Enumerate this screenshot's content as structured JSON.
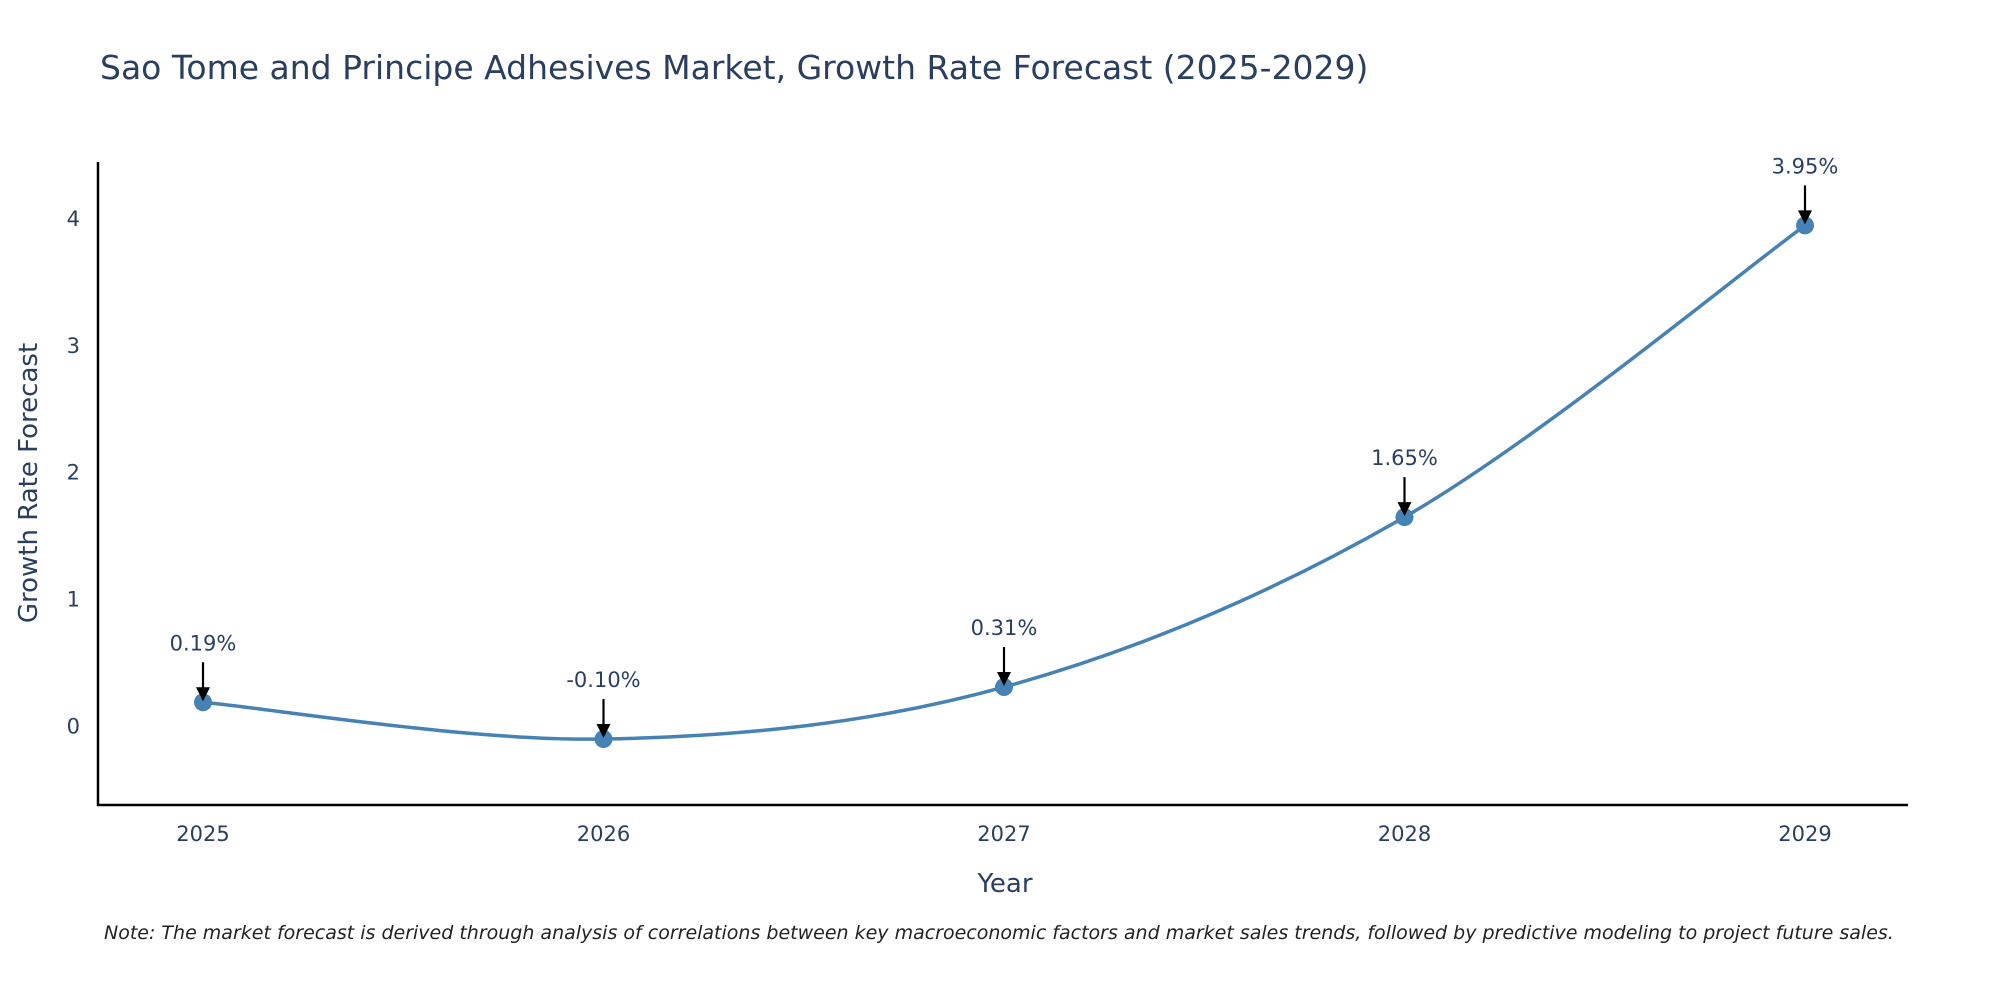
{
  "chart_data": {
    "type": "line",
    "title": "Sao Tome and Principe Adhesives Market, Growth Rate Forecast (2025-2029)",
    "xlabel": "Year",
    "ylabel": "Growth Rate Forecast",
    "categories": [
      "2025",
      "2026",
      "2027",
      "2028",
      "2029"
    ],
    "series": [
      {
        "name": "Growth Rate Forecast",
        "values": [
          0.19,
          -0.1,
          0.31,
          1.65,
          3.95
        ],
        "labels": [
          "0.19%",
          "-0.10%",
          "0.31%",
          "1.65%",
          "3.95%"
        ]
      }
    ],
    "yticks": [
      0,
      1,
      2,
      3,
      4
    ],
    "ylim": [
      -0.62,
      4.45
    ],
    "line_color": "#4682b4",
    "grid": false,
    "note": "Note: The market forecast is derived through analysis of correlations between key macroeconomic factors and market sales trends, followed by predictive modeling to project future sales."
  }
}
